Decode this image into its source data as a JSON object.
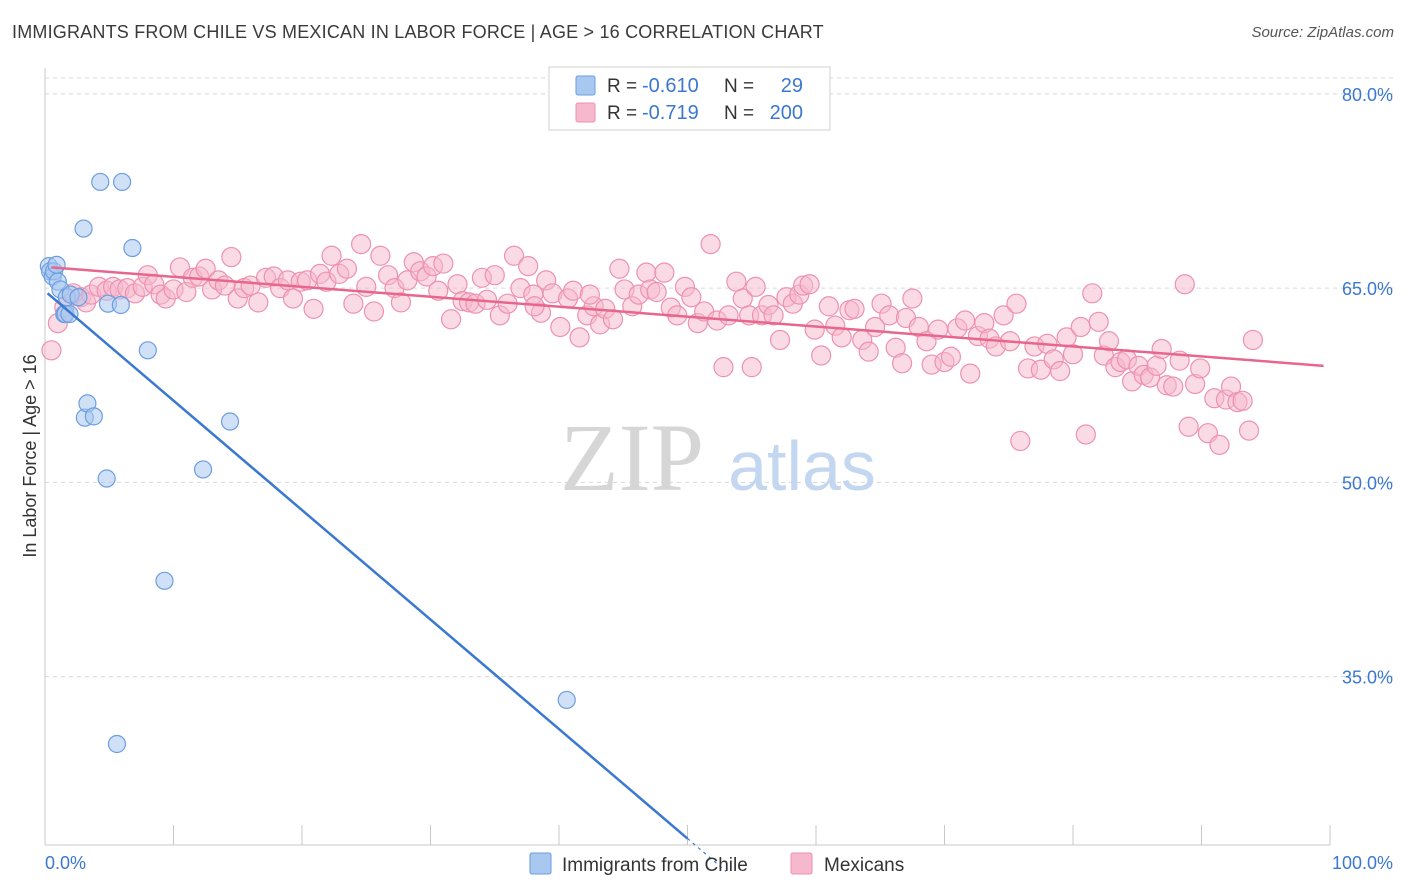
{
  "title": "IMMIGRANTS FROM CHILE VS MEXICAN IN LABOR FORCE | AGE > 16 CORRELATION CHART",
  "source": "Source: ZipAtlas.com",
  "watermark": {
    "part1": "ZIP",
    "part2": "atlas"
  },
  "colors": {
    "blue": "#3b78d0",
    "blue_fill": "#a9c8f0",
    "blue_stroke": "#6b9ee0",
    "pink": "#e8668e",
    "pink_fill": "#f6b8cc",
    "pink_stroke": "#ee91b0",
    "grid": "#d8d8d8",
    "axis_label": "#3b78d0"
  },
  "legend_top": {
    "rows": [
      {
        "r_label": "R = ",
        "r_value": "-0.610",
        "n_label": "N = ",
        "n_value": "29"
      },
      {
        "r_label": "R = ",
        "r_value": "-0.719",
        "n_label": "N = ",
        "n_value": "200"
      }
    ]
  },
  "legend_bottom": {
    "items": [
      "Immigrants from Chile",
      "Mexicans"
    ]
  },
  "chart_data": {
    "type": "scatter",
    "title": "IMMIGRANTS FROM CHILE VS MEXICAN IN LABOR FORCE | AGE > 16 CORRELATION CHART",
    "xlabel": "",
    "ylabel": "In Labor Force | Age > 16",
    "xlim": [
      0,
      100
    ],
    "ylim": [
      22,
      82
    ],
    "x_tick_labels": [
      "0.0%",
      "100.0%"
    ],
    "y_ticks": [
      80,
      65,
      50,
      35
    ],
    "y_tick_labels": [
      "80.0%",
      "65.0%",
      "50.0%",
      "35.0%"
    ],
    "grid": true,
    "legend_position": "top-center",
    "series": [
      {
        "name": "Immigrants from Chile",
        "r": -0.61,
        "n": 29,
        "trend": {
          "x0": 0.2,
          "y0": 64.6,
          "x1": 50.0,
          "y1": 22.5,
          "dash_to_x": 53.0
        },
        "points": [
          [
            0.3,
            66.7
          ],
          [
            0.4,
            66.3
          ],
          [
            0.6,
            65.9
          ],
          [
            0.7,
            66.3
          ],
          [
            0.9,
            66.8
          ],
          [
            1.0,
            65.5
          ],
          [
            1.2,
            64.9
          ],
          [
            1.5,
            63.0
          ],
          [
            1.6,
            63.0
          ],
          [
            1.7,
            64.3
          ],
          [
            1.9,
            63.0
          ],
          [
            2.0,
            64.5
          ],
          [
            2.6,
            64.3
          ],
          [
            3.0,
            69.6
          ],
          [
            4.3,
            73.2
          ],
          [
            6.0,
            73.2
          ],
          [
            6.8,
            68.1
          ],
          [
            4.9,
            63.8
          ],
          [
            5.9,
            63.7
          ],
          [
            8.0,
            60.2
          ],
          [
            3.1,
            55.0
          ],
          [
            3.3,
            56.1
          ],
          [
            3.8,
            55.1
          ],
          [
            4.8,
            50.3
          ],
          [
            12.3,
            51.0
          ],
          [
            14.4,
            54.7
          ],
          [
            9.3,
            42.4
          ],
          [
            40.6,
            33.2
          ],
          [
            5.6,
            29.8
          ]
        ]
      },
      {
        "name": "Mexicans",
        "r": -0.719,
        "n": 200,
        "trend": {
          "x0": 0.5,
          "y0": 66.6,
          "x1": 99.5,
          "y1": 59.0
        },
        "points": [
          [
            0.5,
            60.2
          ],
          [
            1.0,
            62.3
          ],
          [
            1.5,
            63.5
          ],
          [
            2.2,
            64.6
          ],
          [
            2.8,
            64.3
          ],
          [
            3.2,
            63.9
          ],
          [
            3.6,
            64.5
          ],
          [
            4.2,
            65.1
          ],
          [
            4.8,
            64.8
          ],
          [
            5.3,
            65.1
          ],
          [
            5.8,
            64.9
          ],
          [
            6.4,
            65.0
          ],
          [
            7.0,
            64.6
          ],
          [
            7.6,
            65.1
          ],
          [
            8.0,
            66.0
          ],
          [
            8.5,
            65.3
          ],
          [
            9.0,
            64.5
          ],
          [
            9.4,
            64.2
          ],
          [
            10.0,
            64.9
          ],
          [
            10.5,
            66.6
          ],
          [
            11.0,
            64.7
          ],
          [
            11.5,
            65.8
          ],
          [
            12.0,
            65.9
          ],
          [
            12.5,
            66.5
          ],
          [
            13.0,
            64.9
          ],
          [
            13.5,
            65.6
          ],
          [
            14.0,
            65.2
          ],
          [
            14.5,
            67.4
          ],
          [
            15.0,
            64.2
          ],
          [
            15.5,
            65.0
          ],
          [
            16.0,
            65.2
          ],
          [
            16.6,
            63.9
          ],
          [
            17.2,
            65.8
          ],
          [
            17.8,
            65.9
          ],
          [
            18.3,
            65.0
          ],
          [
            18.9,
            65.6
          ],
          [
            19.3,
            64.2
          ],
          [
            19.9,
            65.5
          ],
          [
            20.4,
            65.6
          ],
          [
            20.9,
            63.4
          ],
          [
            21.4,
            66.1
          ],
          [
            21.9,
            65.5
          ],
          [
            22.3,
            67.5
          ],
          [
            22.9,
            66.1
          ],
          [
            23.5,
            66.5
          ],
          [
            24.0,
            63.8
          ],
          [
            24.6,
            68.4
          ],
          [
            25.0,
            65.1
          ],
          [
            25.6,
            63.2
          ],
          [
            26.1,
            67.5
          ],
          [
            26.7,
            66.0
          ],
          [
            27.2,
            65.0
          ],
          [
            27.7,
            63.9
          ],
          [
            28.2,
            65.6
          ],
          [
            28.7,
            67.0
          ],
          [
            29.2,
            66.3
          ],
          [
            29.7,
            65.9
          ],
          [
            30.2,
            66.7
          ],
          [
            30.6,
            64.8
          ],
          [
            31.0,
            66.9
          ],
          [
            31.6,
            62.6
          ],
          [
            32.1,
            65.3
          ],
          [
            32.5,
            64.0
          ],
          [
            33.0,
            63.9
          ],
          [
            33.5,
            63.8
          ],
          [
            34.0,
            65.8
          ],
          [
            34.4,
            64.1
          ],
          [
            35.0,
            66.0
          ],
          [
            35.4,
            62.9
          ],
          [
            36.0,
            63.8
          ],
          [
            36.5,
            67.5
          ],
          [
            37.0,
            65.0
          ],
          [
            37.6,
            66.7
          ],
          [
            38.0,
            64.5
          ],
          [
            38.6,
            63.1
          ],
          [
            39.0,
            65.6
          ],
          [
            39.5,
            64.6
          ],
          [
            40.1,
            62.0
          ],
          [
            40.7,
            64.2
          ],
          [
            41.1,
            64.8
          ],
          [
            41.6,
            61.2
          ],
          [
            42.2,
            62.9
          ],
          [
            42.7,
            63.6
          ],
          [
            43.2,
            62.2
          ],
          [
            43.6,
            63.4
          ],
          [
            44.2,
            62.6
          ],
          [
            44.7,
            66.5
          ],
          [
            45.1,
            64.9
          ],
          [
            45.7,
            63.6
          ],
          [
            46.2,
            64.5
          ],
          [
            46.8,
            66.2
          ],
          [
            47.1,
            64.9
          ],
          [
            47.6,
            64.7
          ],
          [
            48.2,
            66.2
          ],
          [
            48.7,
            63.5
          ],
          [
            49.2,
            62.9
          ],
          [
            49.8,
            65.1
          ],
          [
            50.3,
            64.3
          ],
          [
            50.8,
            62.3
          ],
          [
            51.3,
            63.2
          ],
          [
            51.8,
            68.4
          ],
          [
            52.3,
            62.5
          ],
          [
            52.8,
            58.9
          ],
          [
            53.2,
            62.9
          ],
          [
            53.8,
            65.5
          ],
          [
            54.3,
            64.2
          ],
          [
            54.8,
            62.9
          ],
          [
            55.3,
            65.1
          ],
          [
            55.8,
            62.9
          ],
          [
            56.3,
            63.7
          ],
          [
            56.7,
            62.9
          ],
          [
            57.2,
            61.0
          ],
          [
            57.7,
            64.3
          ],
          [
            58.2,
            63.8
          ],
          [
            58.7,
            64.5
          ],
          [
            59.0,
            65.2
          ],
          [
            59.5,
            65.3
          ],
          [
            59.9,
            61.8
          ],
          [
            60.4,
            59.8
          ],
          [
            61.0,
            63.6
          ],
          [
            61.5,
            62.1
          ],
          [
            62.0,
            61.2
          ],
          [
            62.6,
            63.3
          ],
          [
            63.0,
            63.4
          ],
          [
            63.6,
            61.0
          ],
          [
            64.1,
            60.1
          ],
          [
            64.6,
            62.0
          ],
          [
            65.1,
            63.8
          ],
          [
            65.7,
            62.9
          ],
          [
            66.2,
            60.4
          ],
          [
            66.7,
            59.2
          ],
          [
            67.0,
            62.7
          ],
          [
            67.5,
            64.2
          ],
          [
            68.0,
            62.0
          ],
          [
            68.6,
            60.9
          ],
          [
            69.0,
            59.1
          ],
          [
            69.5,
            61.8
          ],
          [
            70.0,
            59.3
          ],
          [
            70.5,
            59.7
          ],
          [
            71.0,
            61.9
          ],
          [
            71.6,
            62.5
          ],
          [
            72.0,
            58.4
          ],
          [
            72.6,
            61.3
          ],
          [
            73.1,
            62.3
          ],
          [
            73.5,
            61.1
          ],
          [
            74.0,
            60.5
          ],
          [
            74.6,
            62.9
          ],
          [
            75.1,
            60.9
          ],
          [
            75.6,
            63.8
          ],
          [
            75.9,
            53.2
          ],
          [
            76.5,
            58.8
          ],
          [
            77.0,
            60.5
          ],
          [
            77.5,
            58.7
          ],
          [
            78.0,
            60.7
          ],
          [
            78.5,
            59.5
          ],
          [
            79.0,
            58.6
          ],
          [
            79.5,
            61.2
          ],
          [
            80.0,
            59.9
          ],
          [
            80.6,
            62.0
          ],
          [
            81.0,
            53.7
          ],
          [
            81.5,
            64.6
          ],
          [
            82.0,
            62.4
          ],
          [
            82.4,
            59.8
          ],
          [
            82.8,
            60.9
          ],
          [
            83.3,
            58.9
          ],
          [
            83.7,
            59.3
          ],
          [
            84.2,
            59.5
          ],
          [
            84.6,
            57.8
          ],
          [
            85.1,
            59.0
          ],
          [
            85.5,
            58.3
          ],
          [
            86.0,
            58.1
          ],
          [
            86.5,
            59.0
          ],
          [
            86.9,
            60.3
          ],
          [
            87.3,
            57.5
          ],
          [
            87.8,
            57.4
          ],
          [
            88.3,
            59.4
          ],
          [
            88.7,
            65.3
          ],
          [
            89.0,
            54.3
          ],
          [
            89.5,
            57.6
          ],
          [
            89.9,
            58.8
          ],
          [
            90.5,
            53.8
          ],
          [
            91.0,
            56.5
          ],
          [
            91.4,
            52.9
          ],
          [
            91.9,
            56.4
          ],
          [
            92.3,
            57.4
          ],
          [
            92.8,
            56.2
          ],
          [
            93.2,
            56.3
          ],
          [
            93.7,
            54.0
          ],
          [
            94.0,
            61.0
          ],
          [
            55.0,
            58.9
          ],
          [
            42.4,
            64.5
          ],
          [
            38.1,
            63.6
          ]
        ]
      }
    ]
  }
}
